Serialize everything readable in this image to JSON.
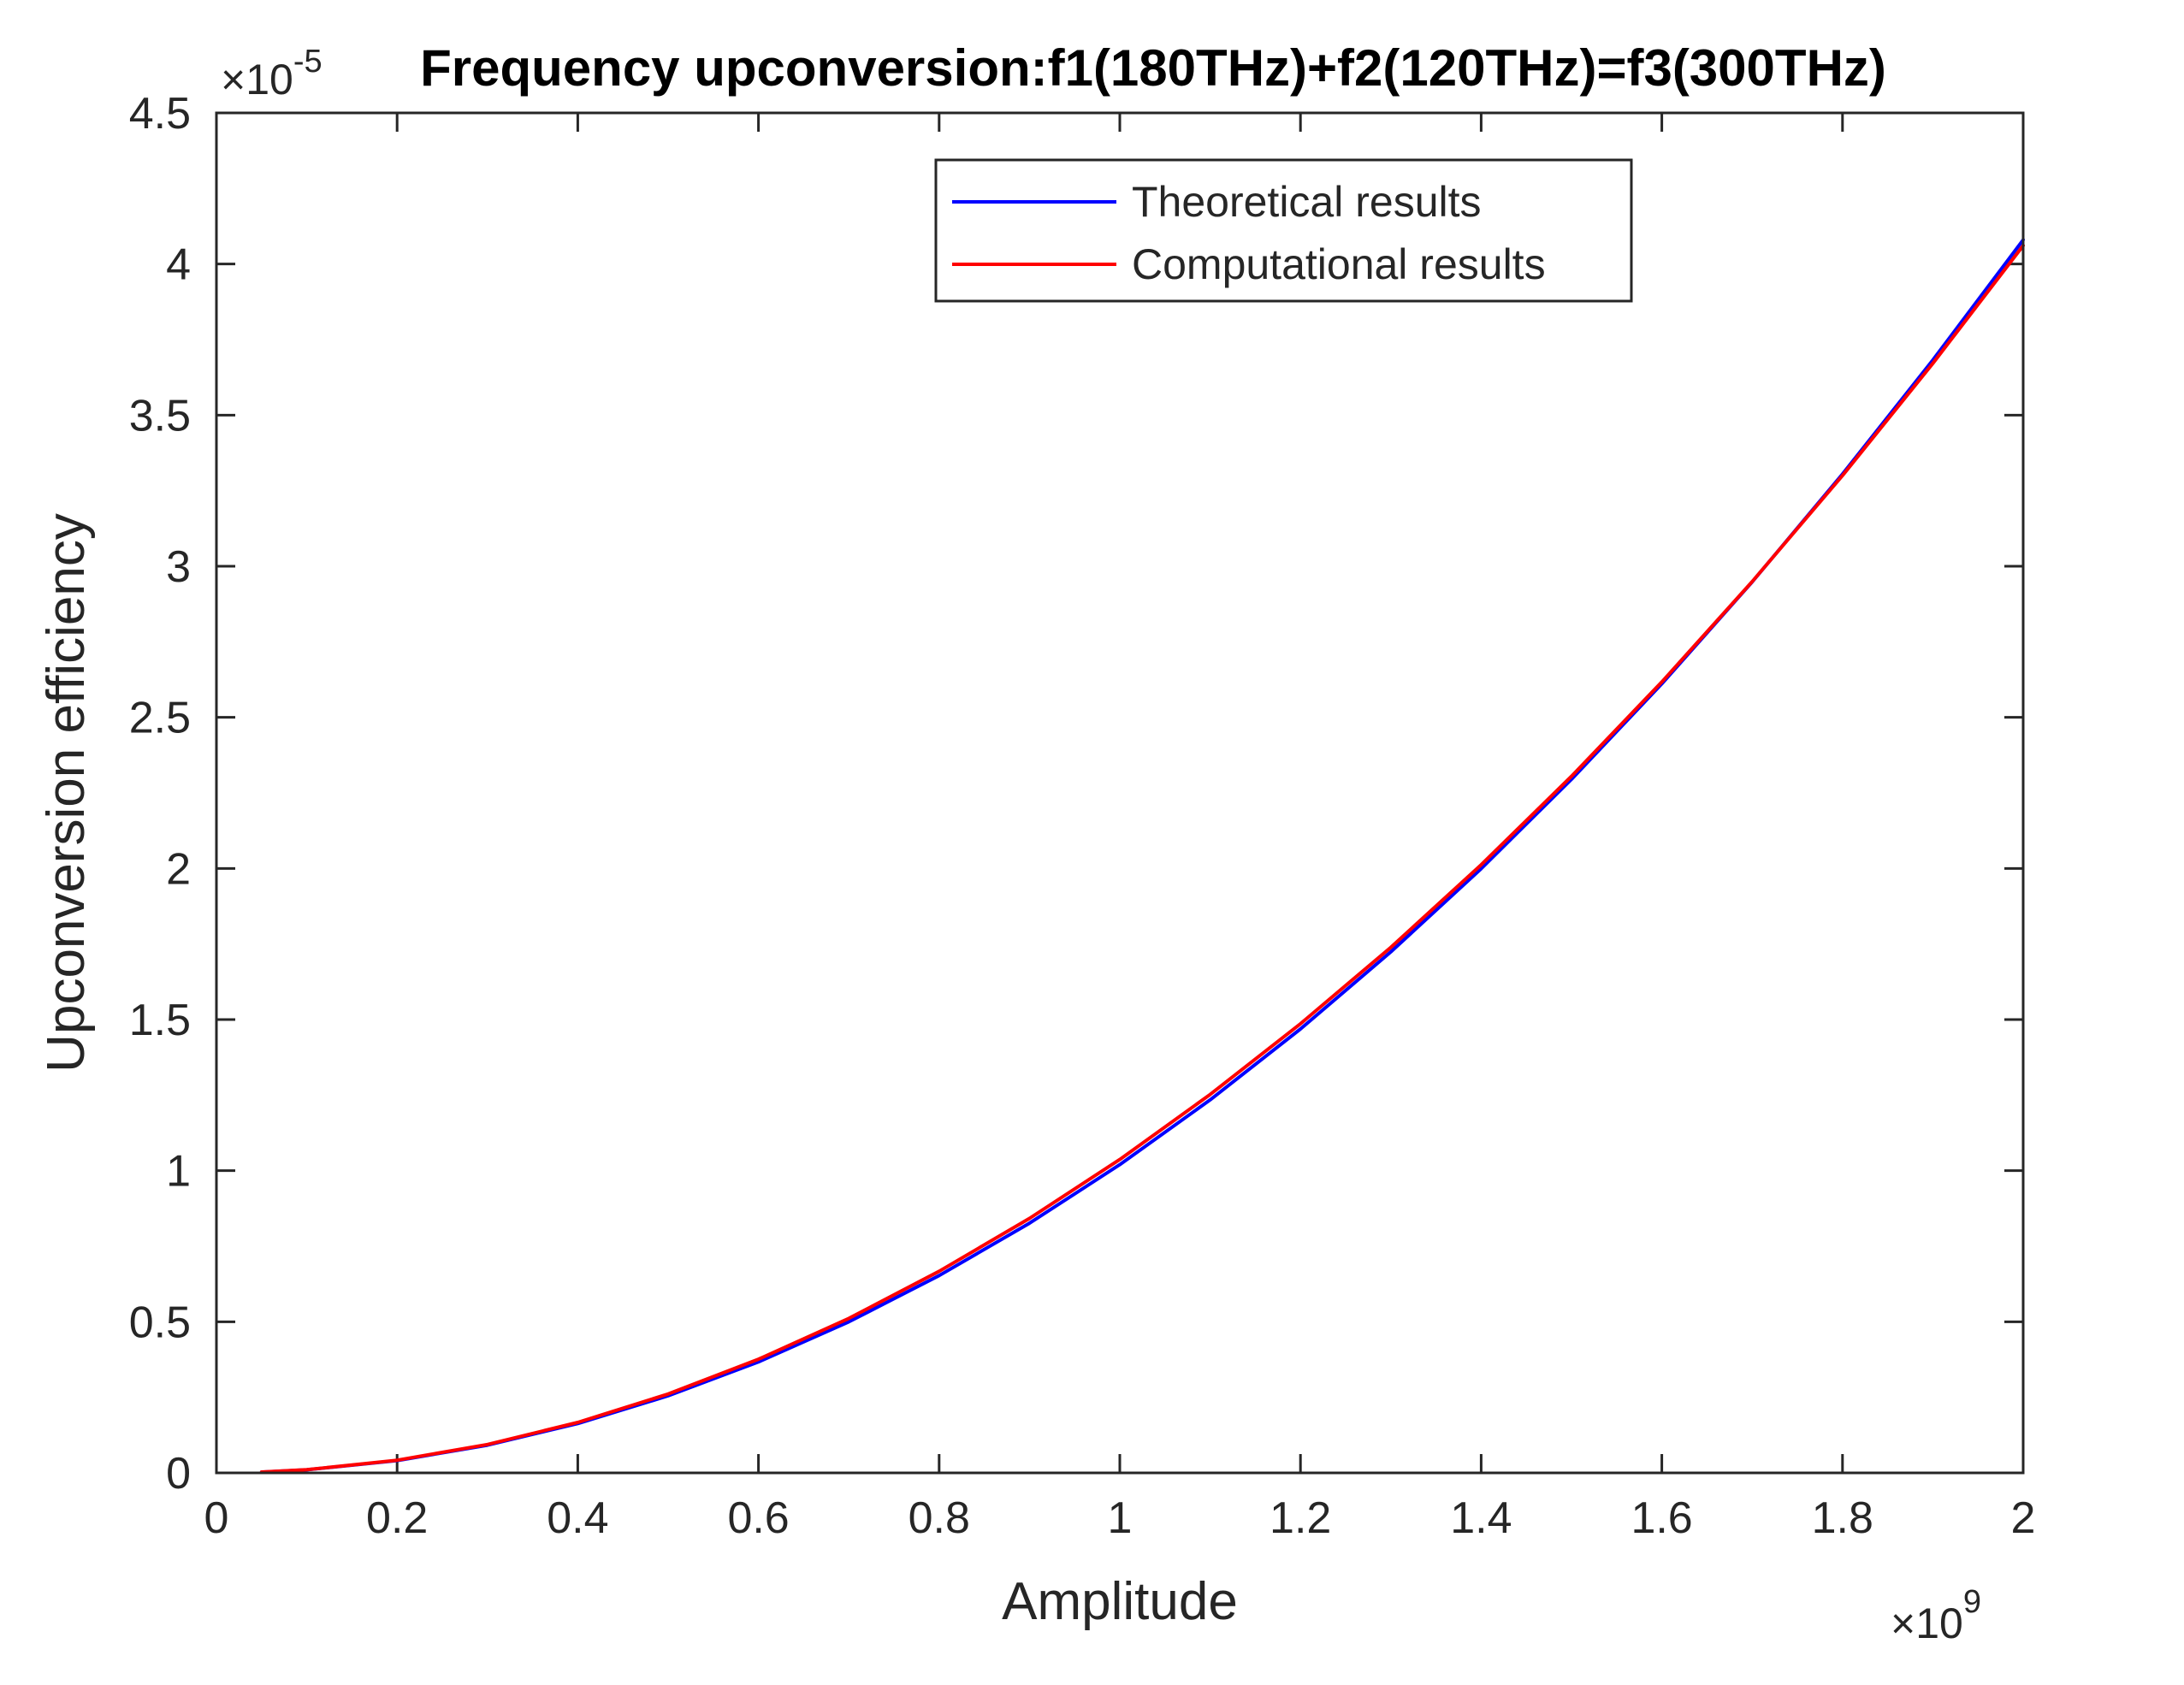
{
  "chart_data": {
    "type": "line",
    "title": "Frequency upconversion:f1(180THz)+f2(120THz)=f3(300THz)",
    "xlabel": "Amplitude",
    "ylabel": "Upconversion efficiency",
    "x_exponent_label": "×10",
    "x_exponent": "9",
    "y_exponent_label": "×10",
    "y_exponent": "-5",
    "xlim": [
      0,
      2
    ],
    "ylim": [
      0,
      4.5
    ],
    "x_ticks": [
      "0",
      "0.2",
      "0.4",
      "0.6",
      "0.8",
      "1",
      "1.2",
      "1.4",
      "1.6",
      "1.8",
      "2"
    ],
    "y_ticks": [
      "0",
      "0.5",
      "1",
      "1.5",
      "2",
      "2.5",
      "3",
      "3.5",
      "4",
      "4.5"
    ],
    "grid": false,
    "legend_position": "top-right",
    "series": [
      {
        "name": "Theoretical results",
        "color": "#0000ff",
        "x": [
          0.05,
          0.1,
          0.2,
          0.3,
          0.4,
          0.5,
          0.6,
          0.7,
          0.8,
          0.9,
          1.0,
          1.1,
          1.2,
          1.3,
          1.4,
          1.5,
          1.6,
          1.7,
          1.8,
          1.9,
          2.0
        ],
        "y": [
          0.0026,
          0.0102,
          0.0408,
          0.0918,
          0.1632,
          0.255,
          0.3672,
          0.4998,
          0.6528,
          0.8262,
          1.02,
          1.2342,
          1.4688,
          1.7238,
          1.9992,
          2.295,
          2.6112,
          2.9478,
          3.3048,
          3.6822,
          4.08
        ]
      },
      {
        "name": "Computational results",
        "color": "#ff0000",
        "x": [
          0.05,
          0.1,
          0.2,
          0.3,
          0.4,
          0.5,
          0.6,
          0.7,
          0.8,
          0.9,
          1.0,
          1.1,
          1.2,
          1.3,
          1.4,
          1.5,
          1.6,
          1.7,
          1.8,
          1.9,
          2.0
        ],
        "y": [
          0.0027,
          0.0106,
          0.042,
          0.094,
          0.167,
          0.261,
          0.376,
          0.511,
          0.667,
          0.842,
          1.037,
          1.252,
          1.486,
          1.739,
          2.012,
          2.305,
          2.617,
          2.949,
          3.3,
          3.671,
          4.061
        ]
      }
    ]
  }
}
